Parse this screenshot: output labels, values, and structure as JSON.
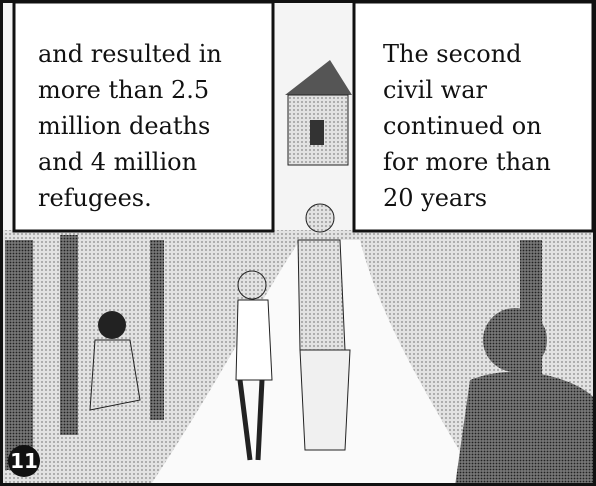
{
  "captions": [
    {
      "lines": [
        "and resulted in",
        "more than 2.5",
        "million deaths",
        "and 4 million",
        "refugees."
      ]
    },
    {
      "lines": [
        "The second",
        "civil war",
        "continued on",
        "for more than",
        "20 years"
      ]
    }
  ],
  "panel_number": "11"
}
